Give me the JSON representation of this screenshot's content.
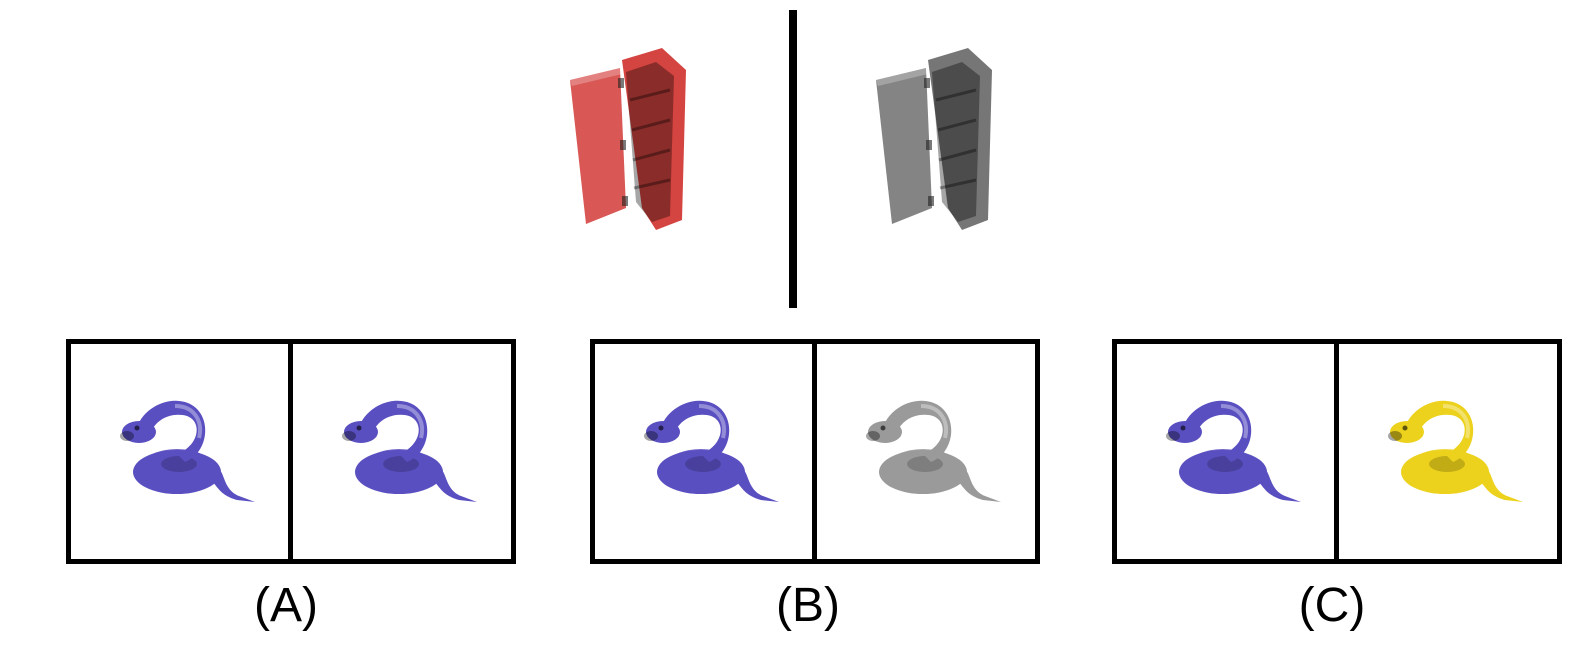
{
  "colors": {
    "cabinet_source": "#d23a36",
    "cabinet_target": "#6f6f6f",
    "snake_blue": "#5a4fc0",
    "snake_gray": "#9a9a9a",
    "snake_yellow": "#ecd21c"
  },
  "options": [
    {
      "label": "(A)",
      "left_snake": "blue",
      "right_snake": "blue"
    },
    {
      "label": "(B)",
      "left_snake": "blue",
      "right_snake": "gray"
    },
    {
      "label": "(C)",
      "left_snake": "blue",
      "right_snake": "yellow"
    }
  ]
}
